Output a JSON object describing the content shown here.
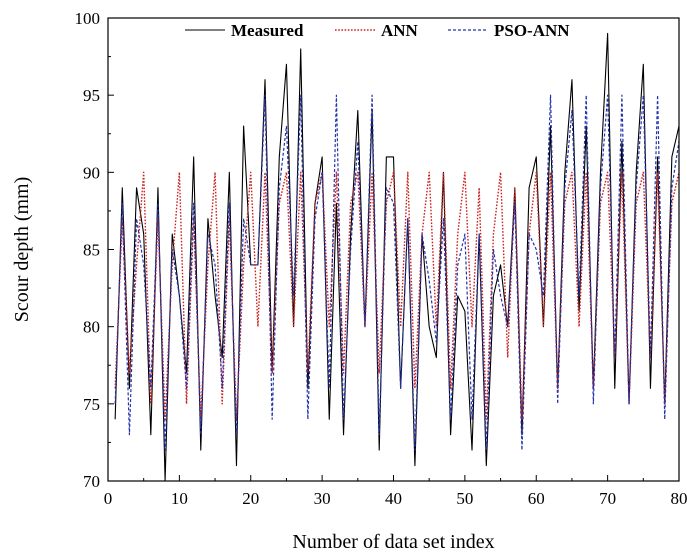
{
  "chart_data": {
    "type": "line",
    "xlabel": "Number of data set index",
    "ylabel": "Scour depth (mm)",
    "xlim": [
      0,
      80
    ],
    "ylim": [
      70,
      100
    ],
    "xticks": [
      "0",
      "10",
      "20",
      "30",
      "40",
      "50",
      "60",
      "70",
      "80"
    ],
    "yticks": [
      "70",
      "75",
      "80",
      "85",
      "90",
      "95",
      "100"
    ],
    "legend_position": "top",
    "x": [
      1,
      2,
      3,
      4,
      5,
      6,
      7,
      8,
      9,
      10,
      11,
      12,
      13,
      14,
      15,
      16,
      17,
      18,
      19,
      20,
      21,
      22,
      23,
      24,
      25,
      26,
      27,
      28,
      29,
      30,
      31,
      32,
      33,
      34,
      35,
      36,
      37,
      38,
      39,
      40,
      41,
      42,
      43,
      44,
      45,
      46,
      47,
      48,
      49,
      50,
      51,
      52,
      53,
      54,
      55,
      56,
      57,
      58,
      59,
      60,
      61,
      62,
      63,
      64,
      65,
      66,
      67,
      68,
      69,
      70,
      71,
      72,
      73,
      74,
      75,
      76,
      77,
      78,
      79,
      80
    ],
    "series": [
      {
        "name": "Measured",
        "color": "#000000",
        "style": "solid",
        "values": [
          74,
          89,
          76,
          89,
          86,
          73,
          89,
          70,
          86,
          82,
          77,
          91,
          72,
          87,
          82,
          78,
          90,
          71,
          93,
          84,
          84,
          96,
          77,
          91,
          97,
          80,
          98,
          76,
          88,
          91,
          74,
          88,
          73,
          86,
          94,
          80,
          94,
          72,
          91,
          91,
          76,
          87,
          71,
          86,
          80,
          78,
          90,
          73,
          82,
          81,
          72,
          86,
          71,
          82,
          84,
          80,
          89,
          73,
          89,
          91,
          80,
          93,
          76,
          90,
          96,
          81,
          93,
          76,
          90,
          99,
          76,
          92,
          75,
          90,
          97,
          76,
          91,
          75,
          91,
          93
        ]
      },
      {
        "name": "ANN",
        "color": "#cc2222",
        "style": "dotted",
        "values": [
          76,
          87,
          77,
          84,
          90,
          75,
          87,
          74,
          84,
          90,
          75,
          87,
          74,
          84,
          90,
          75,
          87,
          74,
          84,
          90,
          80,
          90,
          77,
          88,
          90,
          80,
          90,
          77,
          88,
          90,
          80,
          90,
          77,
          88,
          90,
          80,
          90,
          77,
          88,
          90,
          80,
          90,
          76,
          86,
          90,
          80,
          90,
          76,
          86,
          90,
          80,
          89,
          74,
          86,
          90,
          78,
          89,
          74,
          86,
          90,
          80,
          90,
          76,
          88,
          90,
          80,
          90,
          76,
          88,
          90,
          78,
          90,
          75,
          88,
          90,
          78,
          90,
          75,
          88,
          90
        ]
      },
      {
        "name": "PSO-ANN",
        "color": "#2233aa",
        "style": "dashed",
        "values": [
          75,
          88,
          73,
          87,
          84,
          76,
          88,
          72,
          85,
          82,
          76,
          88,
          73,
          86,
          84,
          76,
          88,
          73,
          87,
          84,
          84,
          95,
          74,
          89,
          93,
          82,
          95,
          74,
          87,
          90,
          76,
          95,
          74,
          85,
          92,
          80,
          95,
          73,
          89,
          88,
          76,
          87,
          72,
          86,
          83,
          79,
          87,
          74,
          84,
          86,
          74,
          86,
          72,
          85,
          82,
          80,
          88,
          72,
          86,
          85,
          82,
          95,
          75,
          89,
          94,
          82,
          95,
          75,
          89,
          95,
          78,
          95,
          75,
          89,
          95,
          78,
          95,
          74,
          89,
          92
        ]
      }
    ]
  }
}
